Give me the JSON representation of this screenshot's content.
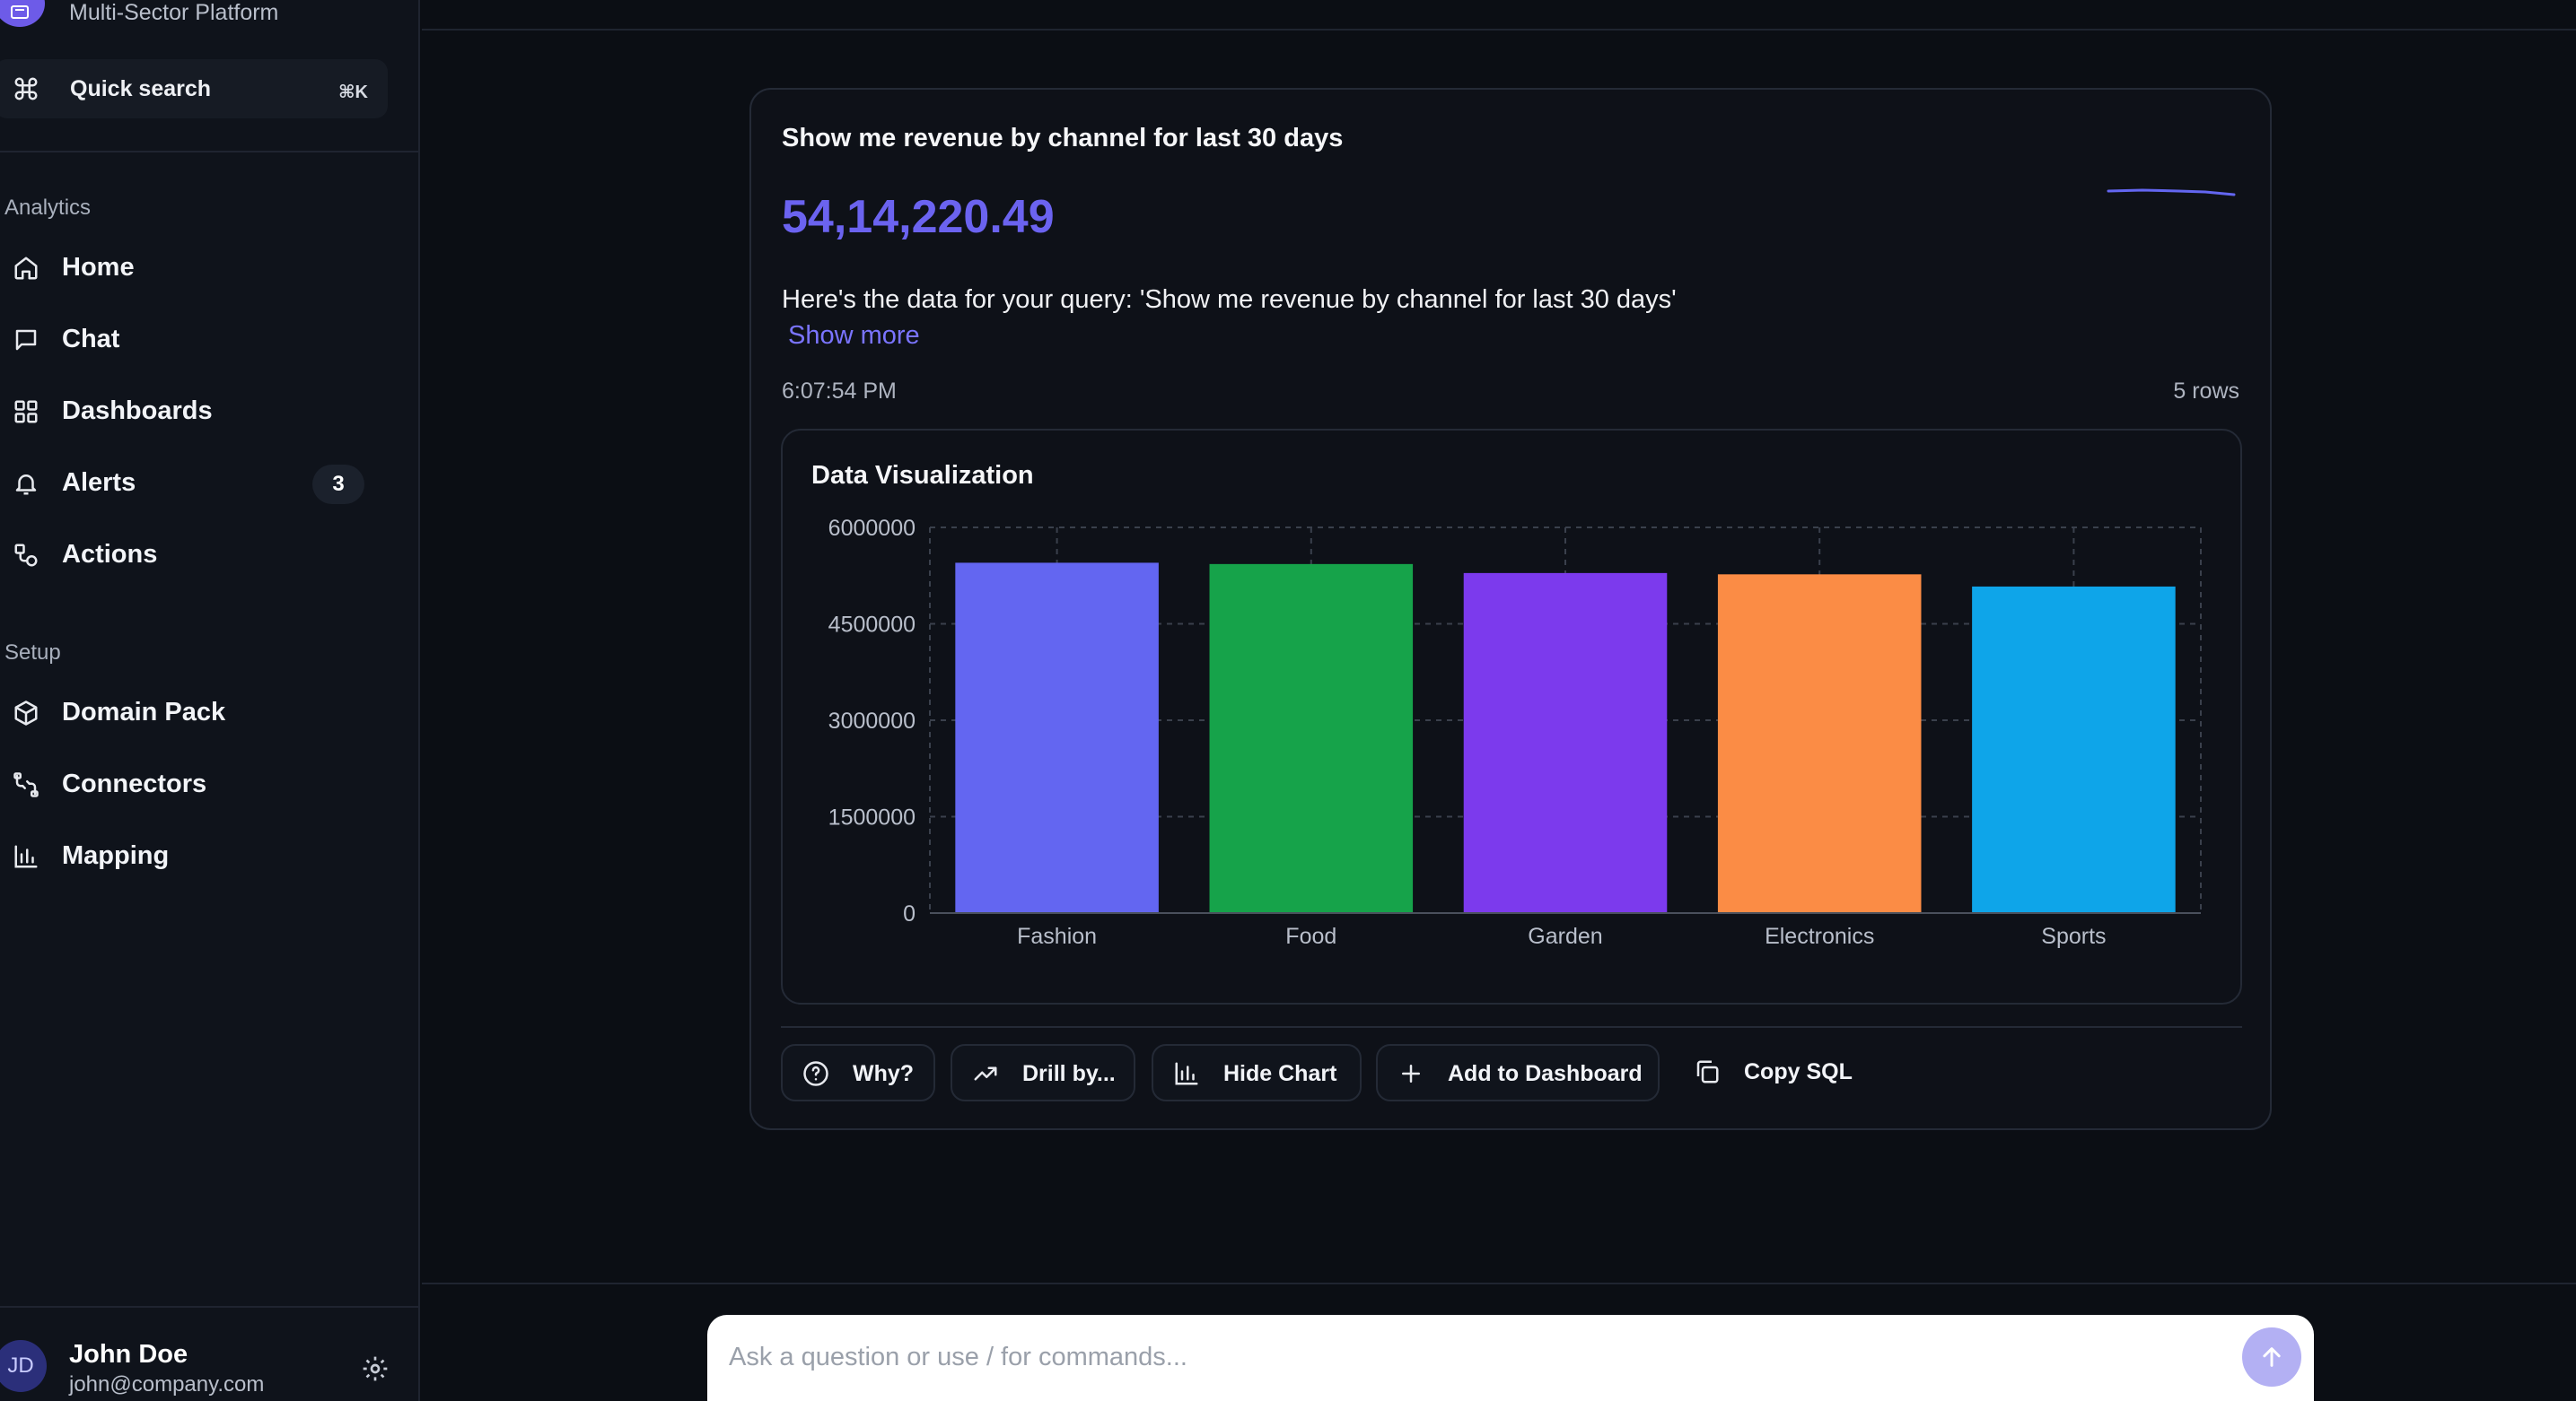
{
  "sidebar": {
    "brand_subtitle": "Multi-Sector Platform",
    "quick_search": {
      "label": "Quick search",
      "shortcut": "⌘K"
    },
    "sections": {
      "analytics": "Analytics",
      "setup": "Setup"
    },
    "analytics_items": [
      {
        "label": "Home",
        "icon": "home-icon"
      },
      {
        "label": "Chat",
        "icon": "chat-icon"
      },
      {
        "label": "Dashboards",
        "icon": "dashboard-icon"
      },
      {
        "label": "Alerts",
        "icon": "bell-icon",
        "badge": "3"
      },
      {
        "label": "Actions",
        "icon": "actions-icon"
      }
    ],
    "setup_items": [
      {
        "label": "Domain Pack",
        "icon": "package-icon"
      },
      {
        "label": "Connectors",
        "icon": "connector-icon"
      },
      {
        "label": "Mapping",
        "icon": "bar-chart-icon"
      }
    ],
    "user": {
      "initials": "JD",
      "name": "John Doe",
      "email": "john@company.com"
    }
  },
  "result": {
    "query": "Show me revenue by channel for last 30 days",
    "value": "54,14,220.49",
    "answer": "Here's the data for your query: 'Show me revenue by channel for last 30 days'",
    "show_more": "Show more",
    "time": "6:07:54 PM",
    "rows": "5 rows",
    "viz_title": "Data Visualization",
    "actions": {
      "why": "Why?",
      "drill": "Drill by...",
      "hide_chart": "Hide Chart",
      "add_dashboard": "Add to Dashboard",
      "copy_sql": "Copy SQL"
    }
  },
  "chart_data": {
    "type": "bar",
    "title": "Data Visualization",
    "categories": [
      "Fashion",
      "Food",
      "Garden",
      "Electronics",
      "Sports"
    ],
    "values": [
      5450000,
      5430000,
      5290000,
      5270000,
      5080000
    ],
    "colors": [
      "#6366f1",
      "#16a34a",
      "#7c3aed",
      "#fb8c45",
      "#0ea5e9"
    ],
    "ylim": [
      0,
      6000000
    ],
    "yticks": [
      "0",
      "1500000",
      "3000000",
      "4500000",
      "6000000"
    ],
    "grid": true
  },
  "composer": {
    "placeholder": "Ask a question or use / for commands..."
  },
  "colors": {
    "accent": "#6b63f0",
    "background": "#0b0e14"
  }
}
